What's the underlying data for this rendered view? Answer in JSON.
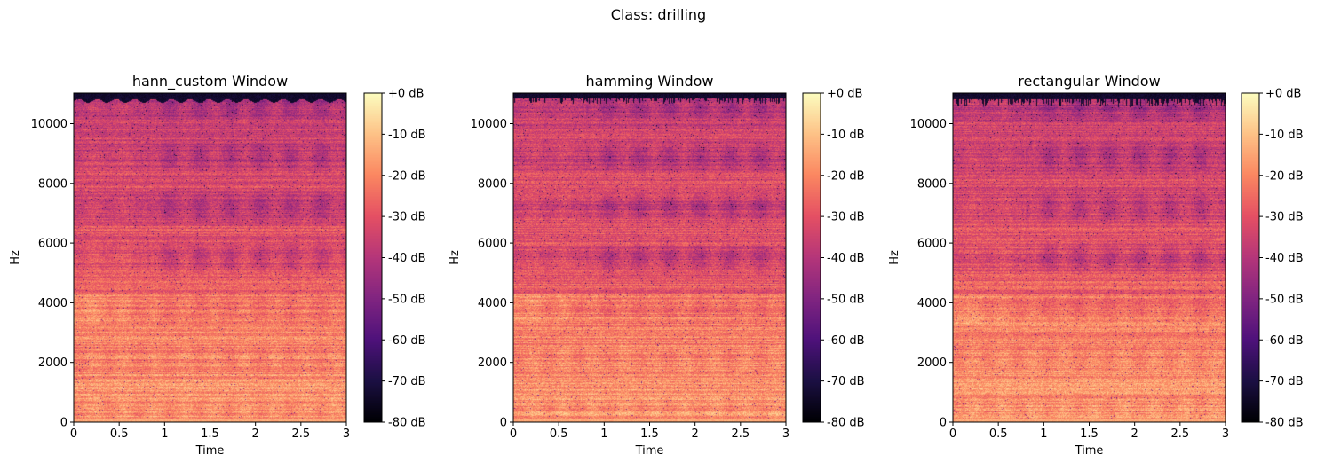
{
  "figure": {
    "suptitle": "Class: drilling"
  },
  "colors": {
    "colormap": "magma",
    "axis": "#000000",
    "background": "#ffffff"
  },
  "chart_data": [
    {
      "type": "heatmap",
      "title": "hann_custom Window",
      "xlabel": "Time",
      "ylabel": "Hz",
      "xlim": [
        0,
        3
      ],
      "ylim": [
        0,
        11025
      ],
      "x_ticks": [
        0,
        0.5,
        1,
        1.5,
        2,
        2.5,
        3
      ],
      "x_tick_labels": [
        "0",
        "0.5",
        "1",
        "1.5",
        "2",
        "2.5",
        "3"
      ],
      "y_ticks": [
        0,
        2000,
        4000,
        6000,
        8000,
        10000
      ],
      "y_tick_labels": [
        "0",
        "2000",
        "4000",
        "6000",
        "8000",
        "10000"
      ],
      "colorbar": {
        "range": [
          -80,
          0
        ],
        "ticks": [
          0,
          -10,
          -20,
          -30,
          -40,
          -50,
          -60,
          -70,
          -80
        ],
        "tick_labels": [
          "+0 dB",
          "-10 dB",
          "-20 dB",
          "-30 dB",
          "-40 dB",
          "-50 dB",
          "-60 dB",
          "-70 dB",
          "-80 dB"
        ]
      },
      "top_edge": "smooth"
    },
    {
      "type": "heatmap",
      "title": "hamming Window",
      "xlabel": "Time",
      "ylabel": "Hz",
      "xlim": [
        0,
        3
      ],
      "ylim": [
        0,
        11025
      ],
      "x_ticks": [
        0,
        0.5,
        1,
        1.5,
        2,
        2.5,
        3
      ],
      "x_tick_labels": [
        "0",
        "0.5",
        "1",
        "1.5",
        "2",
        "2.5",
        "3"
      ],
      "y_ticks": [
        0,
        2000,
        4000,
        6000,
        8000,
        10000
      ],
      "y_tick_labels": [
        "0",
        "2000",
        "4000",
        "6000",
        "8000",
        "10000"
      ],
      "colorbar": {
        "range": [
          -80,
          0
        ],
        "ticks": [
          0,
          -10,
          -20,
          -30,
          -40,
          -50,
          -60,
          -70,
          -80
        ],
        "tick_labels": [
          "+0 dB",
          "-10 dB",
          "-20 dB",
          "-30 dB",
          "-40 dB",
          "-50 dB",
          "-60 dB",
          "-70 dB",
          "-80 dB"
        ]
      },
      "top_edge": "jagged"
    },
    {
      "type": "heatmap",
      "title": "rectangular Window",
      "xlabel": "Time",
      "ylabel": "Hz",
      "xlim": [
        0,
        3
      ],
      "ylim": [
        0,
        11025
      ],
      "x_ticks": [
        0,
        0.5,
        1,
        1.5,
        2,
        2.5,
        3
      ],
      "x_tick_labels": [
        "0",
        "0.5",
        "1",
        "1.5",
        "2",
        "2.5",
        "3"
      ],
      "y_ticks": [
        0,
        2000,
        4000,
        6000,
        8000,
        10000
      ],
      "y_tick_labels": [
        "0",
        "2000",
        "4000",
        "6000",
        "8000",
        "10000"
      ],
      "colorbar": {
        "range": [
          -80,
          0
        ],
        "ticks": [
          0,
          -10,
          -20,
          -30,
          -40,
          -50,
          -60,
          -70,
          -80
        ],
        "tick_labels": [
          "+0 dB",
          "-10 dB",
          "-20 dB",
          "-30 dB",
          "-40 dB",
          "-50 dB",
          "-60 dB",
          "-70 dB",
          "-80 dB"
        ]
      },
      "top_edge": "spiky"
    }
  ]
}
